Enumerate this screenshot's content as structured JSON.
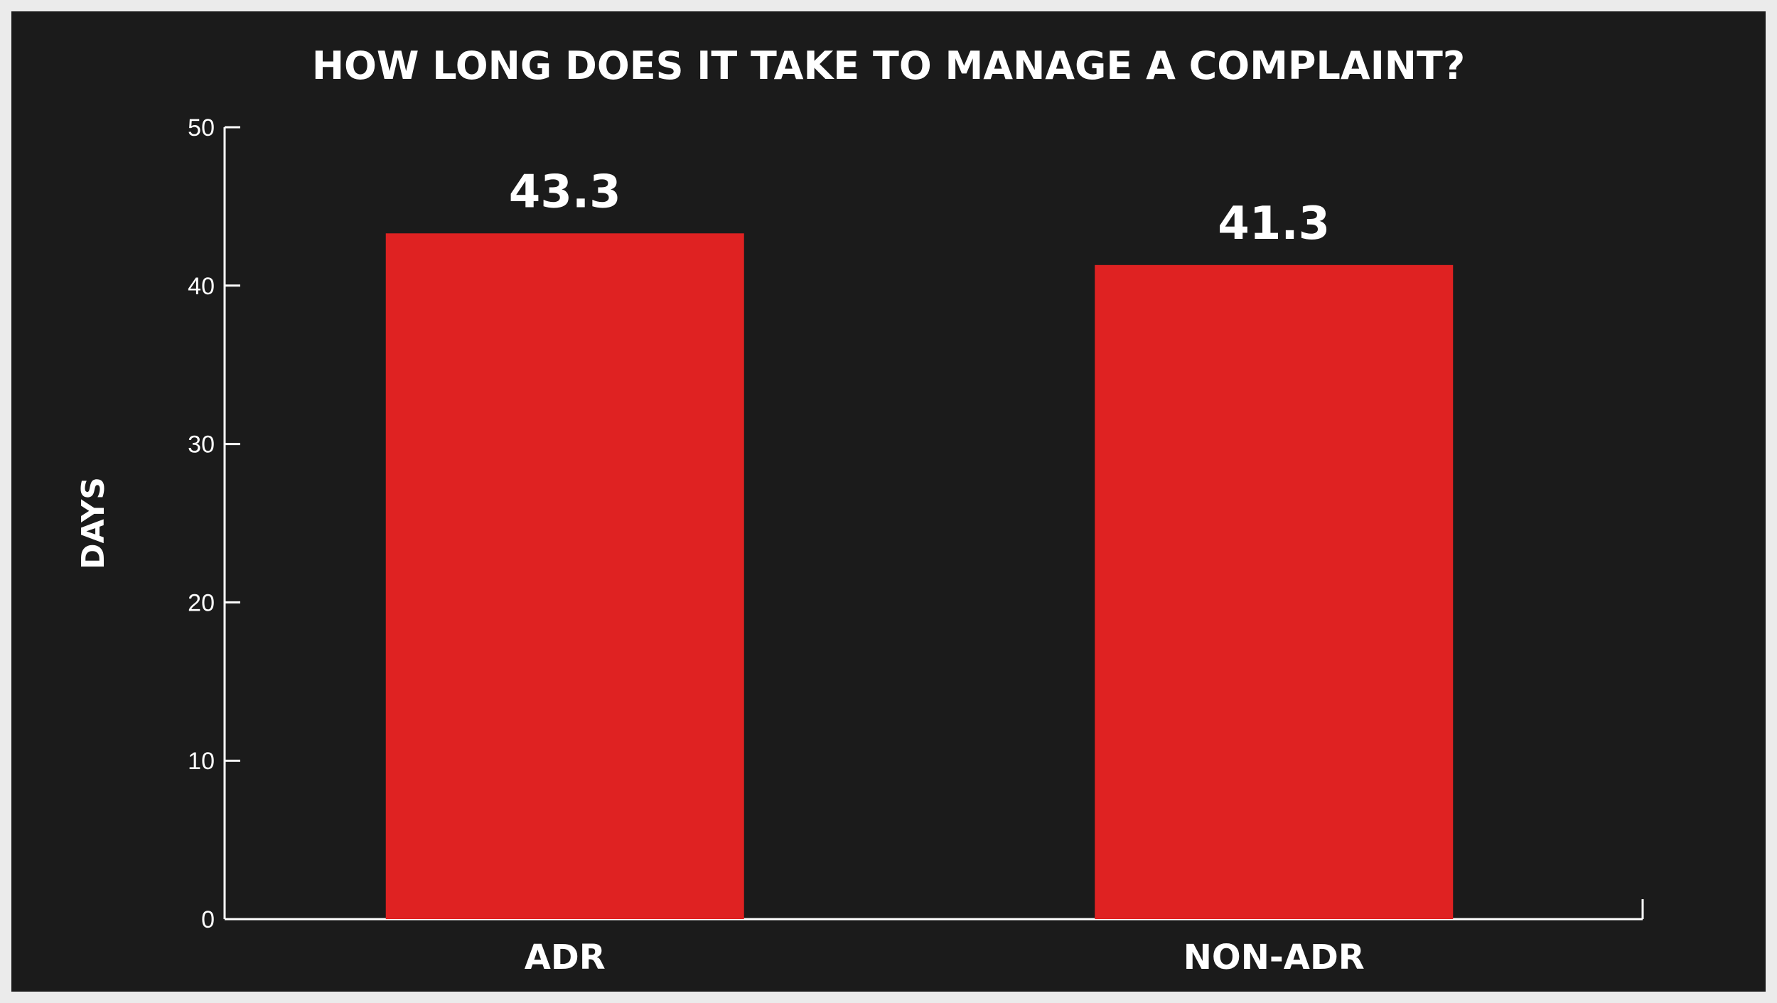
{
  "chart_data": {
    "type": "bar",
    "title": "HOW LONG DOES IT TAKE TO MANAGE A COMPLAINT?",
    "ylabel": "DAYS",
    "xlabel": "",
    "categories": [
      "ADR",
      "NON-ADR"
    ],
    "values": [
      43.3,
      41.3
    ],
    "value_labels": [
      "43.3",
      "41.3"
    ],
    "ylim": [
      0,
      50
    ],
    "yticks": [
      0,
      10,
      20,
      30,
      40,
      50
    ],
    "grid": false,
    "bar_color": "#df2222",
    "background_color": "#1b1b1b",
    "text_color": "#ffffff"
  }
}
